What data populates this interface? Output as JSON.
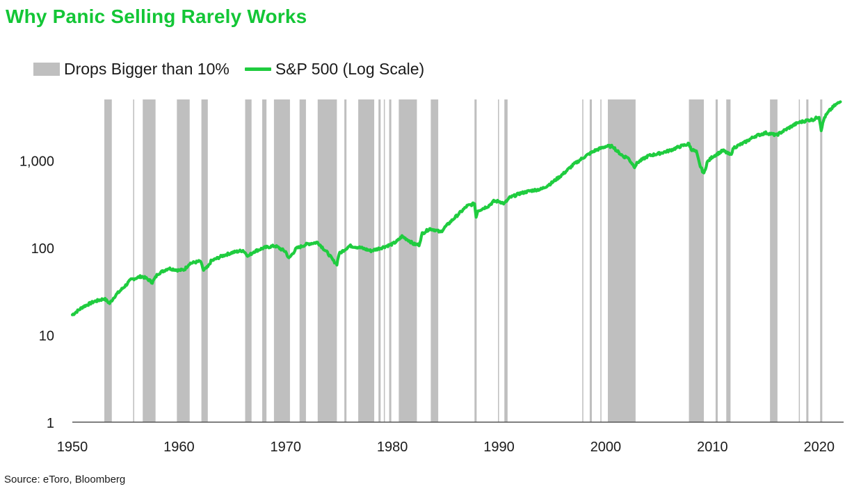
{
  "title": "Why Panic Selling Rarely Works",
  "source": "Source: eToro, Bloomberg",
  "colors": {
    "title": "#13c636",
    "line": "#1fcc3f",
    "bands": "#bfbfbf",
    "axis": "#555555"
  },
  "chart_data": {
    "type": "line",
    "title": "Why Panic Selling Rarely Works",
    "xlabel": "",
    "ylabel": "",
    "y_scale": "log",
    "xlim": [
      1950,
      2022.3
    ],
    "ylim": [
      1,
      5000
    ],
    "x_ticks": [
      1950,
      1960,
      1970,
      1980,
      1990,
      2000,
      2010,
      2020
    ],
    "x_tick_labels": [
      "1950",
      "1960",
      "1970",
      "1980",
      "1990",
      "2000",
      "2010",
      "2020"
    ],
    "y_ticks": [
      1,
      10,
      100,
      1000
    ],
    "y_tick_labels": [
      "1",
      "10",
      "100",
      "1,000"
    ],
    "grid": false,
    "legend_position": "top-left",
    "legend": [
      {
        "label": "Drops Bigger than 10%",
        "kind": "band"
      },
      {
        "label": "S&P 500 (Log Scale)",
        "kind": "line"
      }
    ],
    "bands": [
      [
        1953.0,
        1953.7
      ],
      [
        1955.7,
        1955.8
      ],
      [
        1956.6,
        1957.8
      ],
      [
        1959.8,
        1961.0
      ],
      [
        1962.1,
        1962.7
      ],
      [
        1966.2,
        1966.8
      ],
      [
        1967.8,
        1968.2
      ],
      [
        1968.9,
        1970.4
      ],
      [
        1971.3,
        1971.9
      ],
      [
        1973.0,
        1974.8
      ],
      [
        1975.5,
        1975.7
      ],
      [
        1976.8,
        1978.3
      ],
      [
        1978.7,
        1978.9
      ],
      [
        1979.2,
        1979.3
      ],
      [
        1979.7,
        1979.9
      ],
      [
        1980.6,
        1982.3
      ],
      [
        1983.6,
        1984.3
      ],
      [
        1987.7,
        1987.9
      ],
      [
        1989.9,
        1990.0
      ],
      [
        1990.5,
        1990.8
      ],
      [
        1997.8,
        1997.9
      ],
      [
        1998.5,
        1998.7
      ],
      [
        1999.5,
        1999.6
      ],
      [
        2000.2,
        2002.8
      ],
      [
        2007.8,
        2009.2
      ],
      [
        2010.3,
        2010.5
      ],
      [
        2011.3,
        2011.7
      ],
      [
        2015.4,
        2016.1
      ],
      [
        2018.1,
        2018.2
      ],
      [
        2018.8,
        2019.0
      ],
      [
        2020.1,
        2020.3
      ]
    ],
    "series": [
      {
        "name": "S&P 500 (Log Scale)",
        "x": [
          1950.0,
          1951.0,
          1952.0,
          1953.0,
          1953.5,
          1954.0,
          1955.0,
          1955.5,
          1956.0,
          1956.5,
          1957.0,
          1957.5,
          1958.0,
          1959.0,
          1960.0,
          1960.5,
          1961.0,
          1962.0,
          1962.3,
          1962.7,
          1963.0,
          1964.0,
          1965.0,
          1966.0,
          1966.5,
          1967.0,
          1968.0,
          1969.0,
          1970.0,
          1970.3,
          1971.0,
          1972.0,
          1973.0,
          1974.0,
          1974.5,
          1974.8,
          1975.0,
          1976.0,
          1977.0,
          1978.0,
          1979.0,
          1980.0,
          1980.5,
          1980.9,
          1981.5,
          1982.0,
          1982.5,
          1982.8,
          1983.5,
          1984.0,
          1984.5,
          1985.0,
          1986.0,
          1987.0,
          1987.7,
          1987.85,
          1988.0,
          1989.0,
          1989.5,
          1990.0,
          1990.5,
          1991.0,
          1992.0,
          1993.0,
          1994.0,
          1995.0,
          1996.0,
          1997.0,
          1998.0,
          1999.0,
          2000.0,
          2000.7,
          2001.0,
          2001.7,
          2002.0,
          2002.7,
          2003.0,
          2004.0,
          2005.0,
          2006.0,
          2007.0,
          2007.8,
          2008.0,
          2008.5,
          2008.8,
          2009.2,
          2009.5,
          2010.0,
          2011.0,
          2011.7,
          2012.0,
          2013.0,
          2014.0,
          2015.0,
          2015.6,
          2016.0,
          2017.0,
          2018.0,
          2018.5,
          2019.0,
          2019.5,
          2020.0,
          2020.2,
          2020.5,
          2021.0,
          2021.5,
          2022.0
        ],
        "values": [
          17,
          21,
          24,
          26,
          23,
          28,
          37,
          43,
          45,
          47,
          44,
          40,
          50,
          58,
          55,
          56,
          66,
          70,
          55,
          60,
          70,
          80,
          88,
          93,
          80,
          90,
          100,
          105,
          90,
          75,
          98,
          110,
          115,
          85,
          70,
          65,
          85,
          105,
          100,
          92,
          100,
          110,
          120,
          135,
          122,
          110,
          108,
          145,
          165,
          160,
          150,
          175,
          230,
          300,
          320,
          225,
          265,
          300,
          340,
          340,
          320,
          375,
          420,
          450,
          470,
          560,
          700,
          900,
          1100,
          1300,
          1450,
          1450,
          1300,
          1100,
          1100,
          850,
          950,
          1130,
          1200,
          1300,
          1450,
          1550,
          1350,
          1250,
          900,
          700,
          950,
          1100,
          1300,
          1150,
          1400,
          1600,
          1900,
          2070,
          2000,
          1950,
          2300,
          2700,
          2800,
          2900,
          2950,
          3200,
          2250,
          3100,
          3750,
          4300,
          4700
        ]
      }
    ]
  }
}
